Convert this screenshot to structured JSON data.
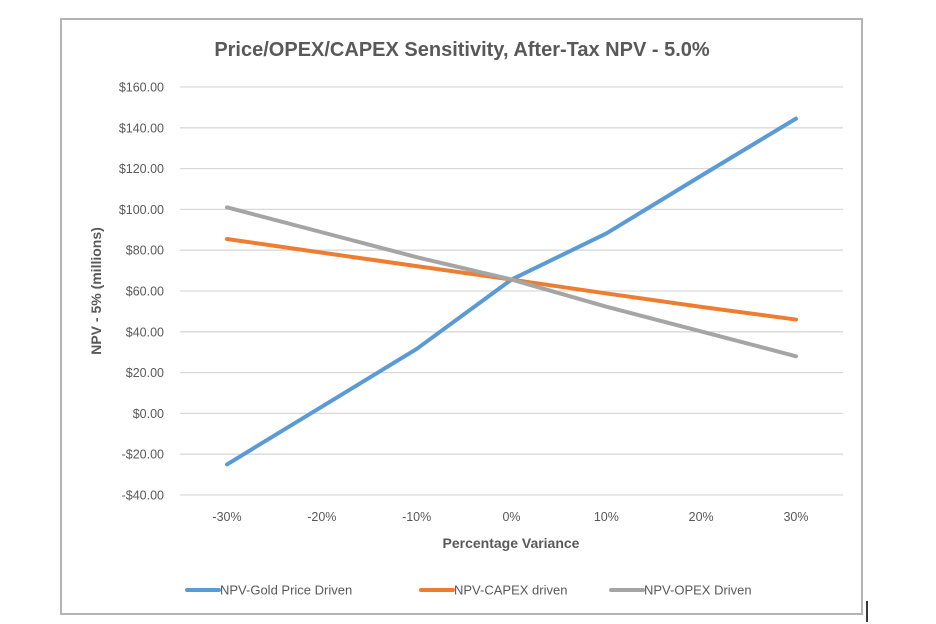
{
  "chart_data": {
    "type": "line",
    "title": "Price/OPEX/CAPEX  Sensitivity, After-Tax NPV - 5.0%",
    "xlabel": "Percentage Variance",
    "ylabel": "NPV - 5% (millions)",
    "categories": [
      "-30%",
      "-20%",
      "-10%",
      "0%",
      "10%",
      "20%",
      "30%"
    ],
    "x": [
      -30,
      -20,
      -10,
      0,
      10,
      20,
      30
    ],
    "ylim": [
      -40,
      160
    ],
    "yticks": [
      160,
      140,
      120,
      100,
      80,
      60,
      40,
      20,
      0,
      -20,
      -40
    ],
    "ytick_labels": [
      "$160.00",
      "$140.00",
      "$120.00",
      "$100.00",
      "$80.00",
      "$60.00",
      "$40.00",
      "$20.00",
      "$0.00",
      "-$20.00",
      "-$40.00"
    ],
    "grid": true,
    "legend_position": "bottom",
    "series": [
      {
        "name": "NPV-Gold Price Driven",
        "color": "#5b9bd5",
        "values": [
          -25.0,
          3.3,
          31.6,
          65.6,
          88.2,
          116.5,
          144.5
        ]
      },
      {
        "name": "NPV-CAPEX driven",
        "color": "#ed7d31",
        "values": [
          85.5,
          78.8,
          72.2,
          65.6,
          58.8,
          52.2,
          46.0
        ]
      },
      {
        "name": "NPV-OPEX Driven",
        "color": "#a5a5a5",
        "values": [
          101.0,
          88.8,
          76.6,
          65.6,
          52.3,
          40.2,
          28.0
        ]
      }
    ]
  }
}
